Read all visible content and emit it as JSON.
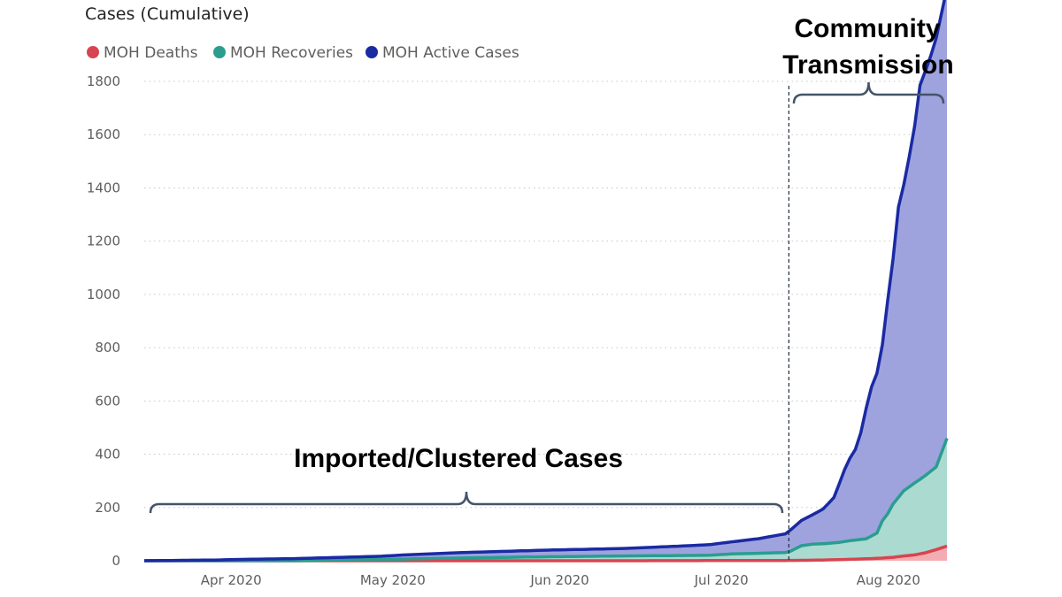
{
  "chart_data": {
    "type": "area",
    "title": "Cases (Cumulative)",
    "xlabel": "",
    "ylabel": "",
    "ylim": [
      0,
      1800
    ],
    "yticks": [
      0,
      200,
      400,
      600,
      800,
      1000,
      1200,
      1400,
      1600,
      1800
    ],
    "xticks": [
      {
        "label": "Apr 2020",
        "date": "2020-04-01"
      },
      {
        "label": "May 2020",
        "date": "2020-05-01"
      },
      {
        "label": "Jun 2020",
        "date": "2020-06-01"
      },
      {
        "label": "Jul 2020",
        "date": "2020-07-01"
      },
      {
        "label": "Aug 2020",
        "date": "2020-08-01"
      }
    ],
    "xlim": [
      "2020-03-18",
      "2020-08-14"
    ],
    "grid": true,
    "legend_position": "top-left",
    "stacked": true,
    "series": [
      {
        "name": "MOH Deaths",
        "color": "#d64550",
        "x": [
          "2020-03-18",
          "2020-04-15",
          "2020-05-15",
          "2020-06-15",
          "2020-07-15",
          "2020-07-20",
          "2020-07-25",
          "2020-07-28",
          "2020-07-31",
          "2020-08-02",
          "2020-08-04",
          "2020-08-06",
          "2020-08-08",
          "2020-08-10",
          "2020-08-12",
          "2020-08-14"
        ],
        "values": [
          0,
          0,
          0,
          0,
          1,
          2,
          4,
          6,
          8,
          10,
          13,
          18,
          22,
          30,
          42,
          55
        ]
      },
      {
        "name": "MOH Recoveries",
        "color": "#2a9d8f",
        "x": [
          "2020-03-18",
          "2020-04-15",
          "2020-05-01",
          "2020-05-15",
          "2020-06-01",
          "2020-06-15",
          "2020-07-01",
          "2020-07-05",
          "2020-07-10",
          "2020-07-15",
          "2020-07-16",
          "2020-07-17",
          "2020-07-18",
          "2020-07-20",
          "2020-07-23",
          "2020-07-25",
          "2020-07-27",
          "2020-07-30",
          "2020-07-31",
          "2020-08-01",
          "2020-08-02",
          "2020-08-03",
          "2020-08-04",
          "2020-08-06",
          "2020-08-08",
          "2020-08-10",
          "2020-08-12",
          "2020-08-14"
        ],
        "values": [
          0,
          0,
          5,
          10,
          15,
          18,
          20,
          25,
          27,
          30,
          35,
          45,
          55,
          60,
          62,
          65,
          70,
          75,
          85,
          95,
          140,
          165,
          200,
          245,
          270,
          290,
          310,
          405
        ]
      },
      {
        "name": "MOH Active Cases",
        "color": "#1a2aa3",
        "fill": "#9ea3de",
        "x": [
          "2020-03-18",
          "2020-04-01",
          "2020-04-05",
          "2020-04-15",
          "2020-05-01",
          "2020-05-05",
          "2020-05-15",
          "2020-06-01",
          "2020-06-15",
          "2020-06-25",
          "2020-07-01",
          "2020-07-05",
          "2020-07-10",
          "2020-07-15",
          "2020-07-16",
          "2020-07-18",
          "2020-07-20",
          "2020-07-22",
          "2020-07-24",
          "2020-07-25",
          "2020-07-26",
          "2020-07-27",
          "2020-07-28",
          "2020-07-29",
          "2020-07-30",
          "2020-07-31",
          "2020-08-01",
          "2020-08-02",
          "2020-08-03",
          "2020-08-04",
          "2020-08-05",
          "2020-08-06",
          "2020-08-07",
          "2020-08-08",
          "2020-08-09",
          "2020-08-10",
          "2020-08-11",
          "2020-08-12",
          "2020-08-13",
          "2020-08-14"
        ],
        "values": [
          0,
          3,
          5,
          8,
          12,
          15,
          20,
          25,
          28,
          35,
          40,
          45,
          55,
          70,
          80,
          95,
          110,
          130,
          170,
          220,
          270,
          310,
          340,
          400,
          490,
          560,
          600,
          660,
          800,
          920,
          1090,
          1150,
          1240,
          1340,
          1480,
          1520,
          1560,
          1610,
          1650,
          1690
        ]
      }
    ],
    "annotations": [
      {
        "text": "Imported/Clustered Cases",
        "from": "2020-03-18",
        "to": "2020-07-15"
      },
      {
        "text_line1": "Community",
        "text_line2": "Transmission",
        "from": "2020-07-16",
        "to": "2020-08-14"
      }
    ],
    "divider_date": "2020-07-15"
  }
}
